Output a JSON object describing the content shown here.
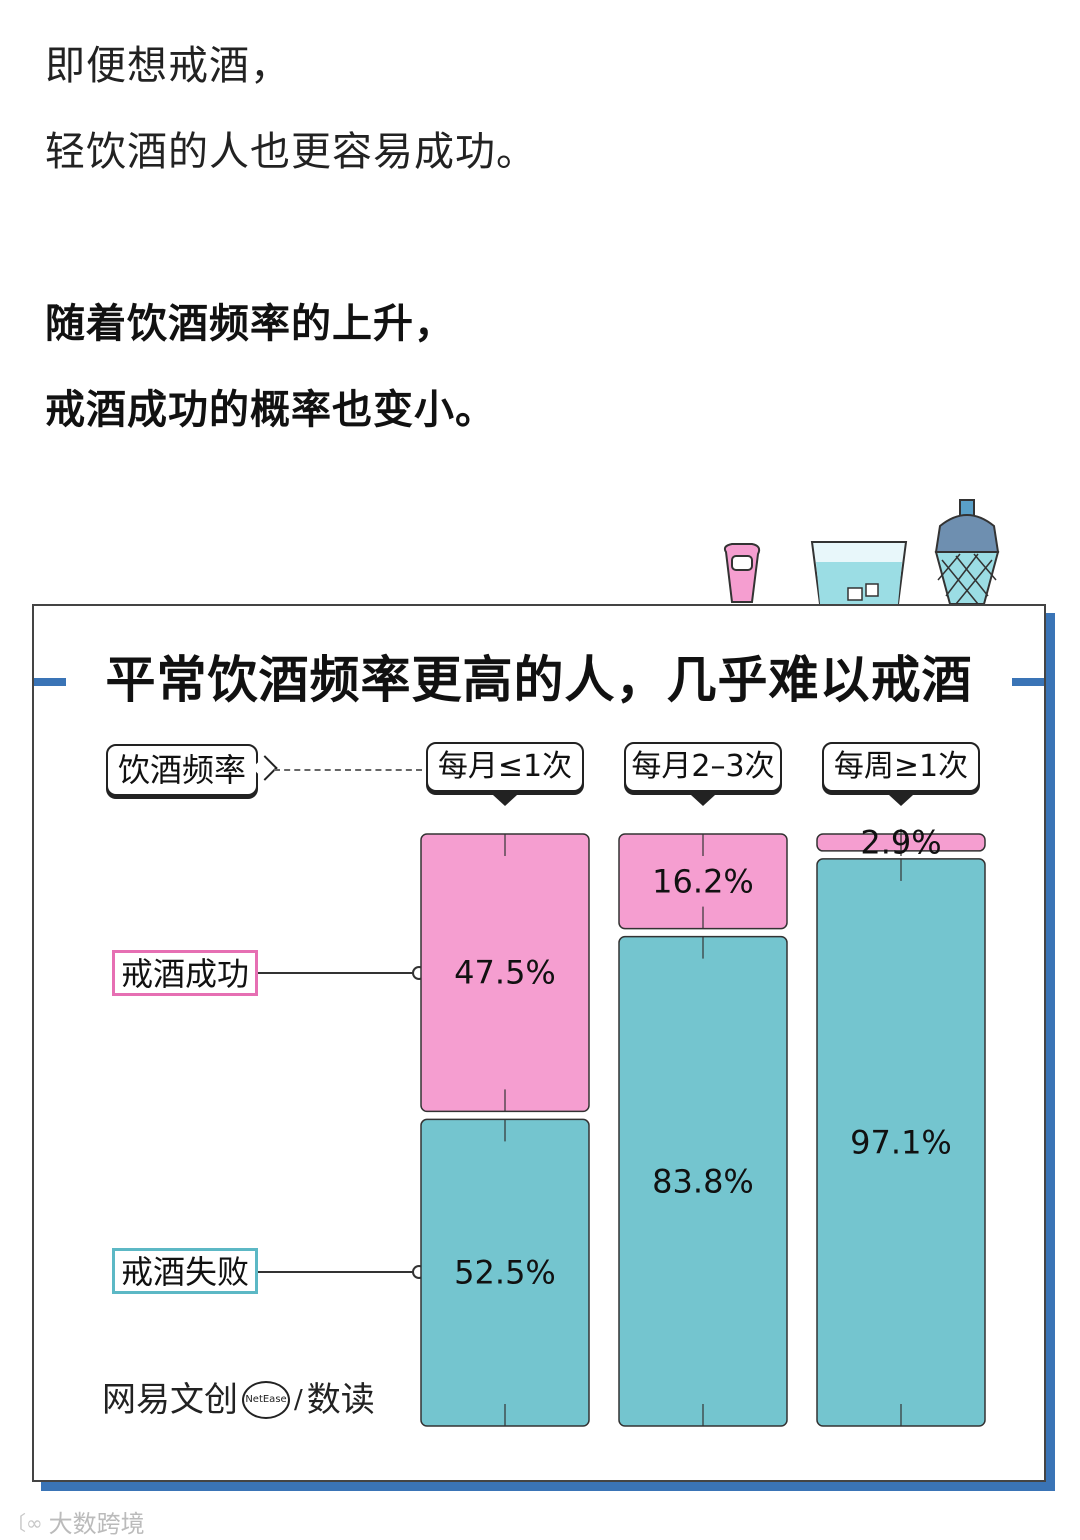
{
  "intro": {
    "line1": "即便想戒酒，",
    "line2": "轻饮酒的人也更容易成功。",
    "line3": "随着饮酒频率的上升，",
    "line4": "戒酒成功的概率也变小。"
  },
  "chart_data": {
    "type": "bar",
    "stacked": true,
    "title": "平常饮酒频率更高的人，几乎难以戒酒",
    "category_axis_label": "饮酒频率",
    "categories": [
      "每月≤1次",
      "每月2–3次",
      "每周≥1次"
    ],
    "series": [
      {
        "name": "戒酒成功",
        "values": [
          47.5,
          16.2,
          2.9
        ],
        "labels": [
          "47.5%",
          "16.2%",
          "2.9%"
        ],
        "color": "#f59ed0"
      },
      {
        "name": "戒酒失败",
        "values": [
          52.5,
          83.8,
          97.1
        ],
        "labels": [
          "52.5%",
          "83.8%",
          "97.1%"
        ],
        "color": "#74c5cf"
      }
    ],
    "ylim": [
      0,
      100
    ],
    "unit": "%",
    "legend_placement": "left"
  },
  "brand": {
    "name": "网易文创",
    "badge": "NetEase",
    "sep": "/",
    "sub": "数读"
  },
  "watermark": {
    "logo": "〔∞",
    "text": "大数跨境"
  },
  "colors": {
    "accent_blue": "#3a74b6",
    "success_pink": "#f59ed0",
    "success_border": "#e66fb3",
    "fail_teal": "#74c5cf",
    "fail_border": "#5cb8c5"
  }
}
